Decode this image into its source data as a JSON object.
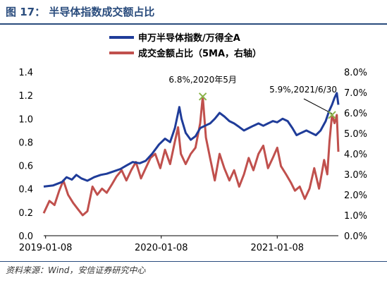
{
  "figure": {
    "title": "图 17：  半导体指数成交额占比",
    "source": "资料来源：Wind，安信证券研究中心"
  },
  "chart_data": {
    "type": "line",
    "legend": {
      "position": "top-center",
      "entries": [
        "申万半导体指数/万得全A",
        "成交金额占比（5MA，右轴）"
      ]
    },
    "x_ticks": [
      "2019-01-08",
      "2020-01-08",
      "2021-01-08"
    ],
    "x_range": [
      "2019-01-02",
      "2021-07-20"
    ],
    "left_axis": {
      "ticks": [
        "0.0",
        "0.2",
        "0.4",
        "0.6",
        "0.8",
        "1.0",
        "1.2",
        "1.4"
      ],
      "ylim": [
        0.0,
        1.4
      ]
    },
    "right_axis": {
      "ticks": [
        "0.0%",
        "1.0%",
        "2.0%",
        "3.0%",
        "4.0%",
        "5.0%",
        "6.0%",
        "7.0%",
        "8.0%"
      ],
      "ylim": [
        0.0,
        8.0
      ],
      "unit": "%"
    },
    "grid": false,
    "series": [
      {
        "name": "申万半导体指数/万得全A",
        "axis": "left",
        "color": "#1f3c99",
        "points": [
          [
            "2019-01-02",
            0.42
          ],
          [
            "2019-02-01",
            0.43
          ],
          [
            "2019-03-01",
            0.46
          ],
          [
            "2019-03-15",
            0.5
          ],
          [
            "2019-04-01",
            0.48
          ],
          [
            "2019-04-15",
            0.52
          ],
          [
            "2019-05-01",
            0.49
          ],
          [
            "2019-05-20",
            0.47
          ],
          [
            "2019-06-10",
            0.5
          ],
          [
            "2019-07-01",
            0.52
          ],
          [
            "2019-07-20",
            0.53
          ],
          [
            "2019-08-10",
            0.55
          ],
          [
            "2019-09-01",
            0.57
          ],
          [
            "2019-09-20",
            0.6
          ],
          [
            "2019-10-10",
            0.63
          ],
          [
            "2019-11-01",
            0.62
          ],
          [
            "2019-11-20",
            0.64
          ],
          [
            "2019-12-10",
            0.7
          ],
          [
            "2020-01-01",
            0.78
          ],
          [
            "2020-01-20",
            0.83
          ],
          [
            "2020-02-05",
            0.8
          ],
          [
            "2020-02-20",
            0.92
          ],
          [
            "2020-03-05",
            1.1
          ],
          [
            "2020-03-12",
            1.0
          ],
          [
            "2020-03-25",
            0.88
          ],
          [
            "2020-04-10",
            0.82
          ],
          [
            "2020-04-25",
            0.85
          ],
          [
            "2020-05-10",
            0.92
          ],
          [
            "2020-05-25",
            0.94
          ],
          [
            "2020-06-10",
            0.96
          ],
          [
            "2020-06-25",
            1.0
          ],
          [
            "2020-07-10",
            1.05
          ],
          [
            "2020-07-25",
            1.02
          ],
          [
            "2020-08-10",
            0.98
          ],
          [
            "2020-08-25",
            0.96
          ],
          [
            "2020-09-10",
            0.93
          ],
          [
            "2020-09-25",
            0.9
          ],
          [
            "2020-10-10",
            0.92
          ],
          [
            "2020-10-25",
            0.94
          ],
          [
            "2020-11-10",
            0.96
          ],
          [
            "2020-11-25",
            0.94
          ],
          [
            "2020-12-10",
            0.96
          ],
          [
            "2020-12-25",
            0.98
          ],
          [
            "2021-01-08",
            0.97
          ],
          [
            "2021-01-25",
            1.0
          ],
          [
            "2021-02-10",
            0.98
          ],
          [
            "2021-02-25",
            0.92
          ],
          [
            "2021-03-10",
            0.86
          ],
          [
            "2021-03-25",
            0.88
          ],
          [
            "2021-04-10",
            0.9
          ],
          [
            "2021-04-25",
            0.88
          ],
          [
            "2021-05-10",
            0.86
          ],
          [
            "2021-05-25",
            0.9
          ],
          [
            "2021-06-10",
            0.98
          ],
          [
            "2021-06-20",
            1.06
          ],
          [
            "2021-06-30",
            1.12
          ],
          [
            "2021-07-08",
            1.18
          ],
          [
            "2021-07-15",
            1.22
          ],
          [
            "2021-07-20",
            1.12
          ]
        ]
      },
      {
        "name": "成交金额占比（5MA，右轴）",
        "axis": "right",
        "color": "#c0504d",
        "points": [
          [
            "2019-01-02",
            1.1
          ],
          [
            "2019-01-20",
            1.7
          ],
          [
            "2019-02-05",
            1.5
          ],
          [
            "2019-02-20",
            2.2
          ],
          [
            "2019-03-05",
            2.7
          ],
          [
            "2019-03-20",
            2.0
          ],
          [
            "2019-04-05",
            1.6
          ],
          [
            "2019-04-20",
            1.3
          ],
          [
            "2019-05-05",
            1.0
          ],
          [
            "2019-05-20",
            1.2
          ],
          [
            "2019-06-05",
            2.4
          ],
          [
            "2019-06-20",
            2.0
          ],
          [
            "2019-07-05",
            2.3
          ],
          [
            "2019-07-20",
            2.1
          ],
          [
            "2019-08-05",
            2.5
          ],
          [
            "2019-08-20",
            2.9
          ],
          [
            "2019-09-05",
            3.2
          ],
          [
            "2019-09-20",
            2.7
          ],
          [
            "2019-10-05",
            3.2
          ],
          [
            "2019-10-20",
            3.6
          ],
          [
            "2019-11-05",
            2.8
          ],
          [
            "2019-11-20",
            3.3
          ],
          [
            "2019-12-05",
            3.8
          ],
          [
            "2019-12-20",
            4.0
          ],
          [
            "2020-01-05",
            3.3
          ],
          [
            "2020-01-20",
            4.2
          ],
          [
            "2020-02-05",
            3.5
          ],
          [
            "2020-02-20",
            4.6
          ],
          [
            "2020-03-01",
            5.3
          ],
          [
            "2020-03-10",
            4.0
          ],
          [
            "2020-03-25",
            3.5
          ],
          [
            "2020-04-10",
            4.0
          ],
          [
            "2020-04-25",
            4.3
          ],
          [
            "2020-05-10",
            5.5
          ],
          [
            "2020-05-18",
            6.8
          ],
          [
            "2020-05-28",
            4.8
          ],
          [
            "2020-06-10",
            3.8
          ],
          [
            "2020-06-25",
            2.7
          ],
          [
            "2020-07-10",
            4.0
          ],
          [
            "2020-07-25",
            3.3
          ],
          [
            "2020-08-10",
            2.7
          ],
          [
            "2020-08-25",
            3.2
          ],
          [
            "2020-09-10",
            2.4
          ],
          [
            "2020-09-25",
            3.0
          ],
          [
            "2020-10-10",
            3.8
          ],
          [
            "2020-10-25",
            3.2
          ],
          [
            "2020-11-10",
            4.0
          ],
          [
            "2020-11-25",
            4.4
          ],
          [
            "2020-12-10",
            3.3
          ],
          [
            "2020-12-25",
            3.8
          ],
          [
            "2021-01-08",
            4.3
          ],
          [
            "2021-01-20",
            3.4
          ],
          [
            "2021-02-05",
            3.0
          ],
          [
            "2021-02-20",
            2.6
          ],
          [
            "2021-03-05",
            2.2
          ],
          [
            "2021-03-20",
            2.4
          ],
          [
            "2021-04-05",
            1.8
          ],
          [
            "2021-04-20",
            2.3
          ],
          [
            "2021-05-05",
            3.3
          ],
          [
            "2021-05-20",
            2.3
          ],
          [
            "2021-06-05",
            3.7
          ],
          [
            "2021-06-15",
            3.0
          ],
          [
            "2021-06-22",
            4.6
          ],
          [
            "2021-06-30",
            5.9
          ],
          [
            "2021-07-08",
            5.5
          ],
          [
            "2021-07-15",
            5.9
          ],
          [
            "2021-07-20",
            4.1
          ]
        ]
      }
    ],
    "annotations": [
      {
        "text": "6.8%,2020年5月",
        "x": "2020-05-18",
        "y": 6.8,
        "axis": "right"
      },
      {
        "text": "5.9%,2021/6/30",
        "x": "2021-06-30",
        "y": 5.9,
        "axis": "right"
      }
    ]
  }
}
